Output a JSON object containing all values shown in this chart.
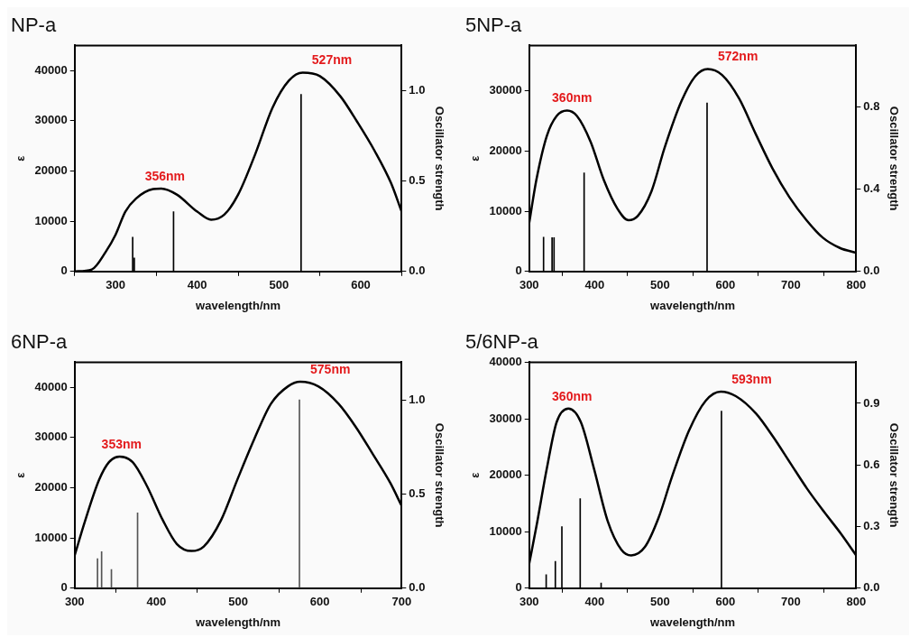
{
  "chart_data": [
    {
      "type": "line",
      "title": "NP-a",
      "xlabel": "wavelength/nm",
      "ylabel": "ε",
      "y2label": "Oscillator strength",
      "xlim": [
        250,
        650
      ],
      "xticks": [
        300,
        400,
        500,
        600
      ],
      "ylim": [
        0,
        45000
      ],
      "yticks": [
        0,
        10000,
        20000,
        30000,
        40000
      ],
      "y2lim": [
        0,
        1.25
      ],
      "y2ticks": [
        {
          "value": 0,
          "label": "0.0"
        },
        {
          "value": 0.5,
          "label": "0.5"
        },
        {
          "value": 1,
          "label": "1.0"
        }
      ],
      "legend": false,
      "annotations": [
        {
          "text": "356nm",
          "x": 356,
          "y": 16500
        },
        {
          "text": "527nm",
          "x": 527,
          "y": 39600
        }
      ],
      "series": [
        {
          "color": "#000000",
          "x": [
            250,
            271,
            288,
            300,
            312,
            325,
            346,
            356,
            375,
            400,
            417,
            433,
            450,
            471,
            492,
            512,
            529,
            550,
            575,
            596,
            617,
            637,
            650
          ],
          "values": [
            0,
            400,
            3900,
            7300,
            11900,
            14500,
            16400,
            16500,
            15300,
            11900,
            10300,
            11300,
            15300,
            23400,
            32600,
            38000,
            39600,
            38900,
            34900,
            29700,
            24000,
            17600,
            11900
          ]
        },
        {
          "type": "bar",
          "axis": "y2",
          "color": "#000000",
          "x": [
            321,
            323,
            371,
            527
          ],
          "values": [
            0.19,
            0.075,
            0.33,
            0.98
          ]
        }
      ]
    },
    {
      "type": "line",
      "title": "5NP-a",
      "xlabel": "wavelength/nm",
      "ylabel": "ε",
      "y2label": "Oscillator strength",
      "xlim": [
        300,
        800
      ],
      "xticks": [
        300,
        400,
        500,
        600,
        700,
        800
      ],
      "ylim": [
        0,
        37500
      ],
      "yticks": [
        0,
        10000,
        20000,
        30000
      ],
      "y2lim": [
        0,
        1.1
      ],
      "y2ticks": [
        {
          "value": 0,
          "label": "0.0"
        },
        {
          "value": 0.4,
          "label": "0.4"
        },
        {
          "value": 0.8,
          "label": "0.8"
        }
      ],
      "legend": false,
      "annotations": [
        {
          "text": "360nm",
          "x": 360,
          "y": 26700
        },
        {
          "text": "572nm",
          "x": 572,
          "y": 33600
        }
      ],
      "series": [
        {
          "color": "#000000",
          "x": [
            300,
            311,
            327,
            342,
            358,
            373,
            394,
            414,
            435,
            452,
            466,
            487,
            507,
            533,
            554,
            573,
            595,
            621,
            646,
            672,
            698,
            724,
            749,
            775,
            800
          ],
          "values": [
            8000,
            15200,
            22500,
            25800,
            26700,
            25800,
            21500,
            15200,
            10400,
            8500,
            9200,
            13300,
            20500,
            28300,
            32400,
            33600,
            32600,
            28700,
            22900,
            17100,
            12300,
            8500,
            5600,
            3900,
            3100
          ]
        },
        {
          "type": "bar",
          "axis": "y2",
          "color": "#000000",
          "x": [
            322,
            335,
            338,
            384,
            572
          ],
          "values": [
            0.167,
            0.165,
            0.165,
            0.48,
            0.82
          ]
        }
      ]
    },
    {
      "type": "line",
      "title": "6NP-a",
      "xlabel": "wavelength/nm",
      "ylabel": "ε",
      "y2label": "Oscillator strength",
      "xlim": [
        300,
        700
      ],
      "xticks": [
        300,
        400,
        500,
        600,
        700
      ],
      "ylim": [
        0,
        45000
      ],
      "yticks": [
        0,
        10000,
        20000,
        30000,
        40000
      ],
      "y2lim": [
        0,
        1.2
      ],
      "y2ticks": [
        {
          "value": 0,
          "label": "0.0"
        },
        {
          "value": 0.5,
          "label": "0.5"
        },
        {
          "value": 1,
          "label": "1.0"
        }
      ],
      "legend": false,
      "annotations": [
        {
          "text": "353nm",
          "x": 353,
          "y": 26200
        },
        {
          "text": "575nm",
          "x": 575,
          "y": 41100
        }
      ],
      "series": [
        {
          "color": "#000000",
          "x": [
            300,
            313,
            330,
            342,
            355,
            371,
            388,
            408,
            425,
            443,
            458,
            479,
            499,
            520,
            540,
            561,
            576,
            598,
            623,
            644,
            664,
            686,
            700
          ],
          "values": [
            6500,
            13500,
            21600,
            25100,
            26200,
            25100,
            20500,
            13500,
            8800,
            7400,
            8300,
            13500,
            21600,
            29800,
            36700,
            40200,
            41100,
            40200,
            36700,
            32100,
            26900,
            21000,
            16400
          ]
        },
        {
          "type": "bar",
          "axis": "y2",
          "color": "#555555",
          "x": [
            328,
            333,
            345,
            377,
            575
          ],
          "values": [
            0.157,
            0.194,
            0.099,
            0.4,
            1.0
          ]
        }
      ]
    },
    {
      "type": "line",
      "title": "5/6NP-a",
      "xlabel": "wavelength/nm",
      "ylabel": "ε",
      "y2label": "Oscillator strength",
      "xlim": [
        300,
        800
      ],
      "xticks": [
        300,
        400,
        500,
        600,
        700,
        800
      ],
      "ylim": [
        0,
        40000
      ],
      "yticks": [
        0,
        10000,
        20000,
        30000,
        40000
      ],
      "y2lim": [
        0,
        1.1
      ],
      "y2ticks": [
        {
          "value": 0,
          "label": "0.0"
        },
        {
          "value": 0.3,
          "label": "0.3"
        },
        {
          "value": 0.6,
          "label": "0.6"
        },
        {
          "value": 0.9,
          "label": "0.9"
        }
      ],
      "legend": false,
      "annotations": [
        {
          "text": "360nm",
          "x": 360,
          "y": 31800
        },
        {
          "text": "593nm",
          "x": 593,
          "y": 34800
        }
      ],
      "series": [
        {
          "color": "#000000",
          "x": [
            300,
            311,
            327,
            342,
            360,
            379,
            399,
            420,
            441,
            456,
            477,
            498,
            518,
            544,
            570,
            593,
            616,
            647,
            673,
            699,
            725,
            751,
            777,
            800
          ],
          "values": [
            4300,
            10900,
            21200,
            29400,
            31800,
            29400,
            21200,
            11900,
            6800,
            5800,
            7300,
            12500,
            19600,
            27800,
            33200,
            34800,
            34000,
            30900,
            26800,
            22200,
            17600,
            13500,
            9600,
            5800
          ]
        },
        {
          "type": "bar",
          "axis": "y2",
          "color": "#000000",
          "x": [
            326,
            340,
            350,
            378,
            410,
            594
          ],
          "values": [
            0.066,
            0.131,
            0.3,
            0.436,
            0.025,
            0.862
          ]
        }
      ]
    }
  ]
}
